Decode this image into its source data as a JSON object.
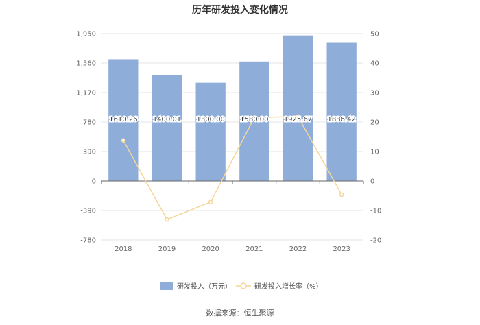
{
  "chart_data": {
    "type": "bar",
    "title": "历年研发投入变化情况",
    "categories": [
      "2018",
      "2019",
      "2020",
      "2021",
      "2022",
      "2023"
    ],
    "series": [
      {
        "name": "研发投入（万元）",
        "type": "bar",
        "axis": "left",
        "color": "#8eadd9",
        "values": [
          1610.26,
          1400.01,
          1300.0,
          1580.0,
          1925.67,
          1836.42
        ],
        "labels": [
          "1610.26",
          "1400.01",
          "1300.00",
          "1580.00",
          "1925.67",
          "1836.42"
        ]
      },
      {
        "name": "研发投入增长率（%）",
        "type": "line",
        "axis": "right",
        "color": "#f5d69a",
        "values": [
          13.8,
          -13.06,
          -7.14,
          21.54,
          21.88,
          -4.63
        ]
      }
    ],
    "y_left": {
      "min": -780,
      "max": 1950,
      "ticks": [
        "1,950",
        "1,560",
        "1,170",
        "780",
        "390",
        "0",
        "-390",
        "-780"
      ],
      "tick_values": [
        1950,
        1560,
        1170,
        780,
        390,
        0,
        -390,
        -780
      ]
    },
    "y_right": {
      "min": -20,
      "max": 50,
      "ticks": [
        "50",
        "40",
        "30",
        "20",
        "10",
        "0",
        "-10",
        "-20"
      ],
      "tick_values": [
        50,
        40,
        30,
        20,
        10,
        0,
        -10,
        -20
      ]
    },
    "grid": true,
    "legend_position": "bottom",
    "source": "数据来源：恒生聚源"
  }
}
